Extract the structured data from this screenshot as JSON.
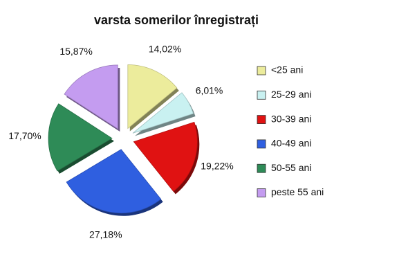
{
  "chart_data": {
    "type": "pie",
    "title": "varsta somerilor înregistrați",
    "categories": [
      "<25 ani",
      "25-29 ani",
      "30-39 ani",
      "40-49 ani",
      "50-55 ani",
      "peste 55 ani"
    ],
    "values": [
      14.02,
      6.01,
      19.22,
      27.18,
      17.7,
      15.87
    ],
    "value_labels": [
      "14,02%",
      "6,01%",
      "19,22%",
      "27,18%",
      "17,70%",
      "15,87%"
    ],
    "colors": [
      "#ecec9c",
      "#c9f1f1",
      "#e01212",
      "#2f5fe0",
      "#2e8b57",
      "#c49cf0"
    ],
    "legend": "right"
  }
}
